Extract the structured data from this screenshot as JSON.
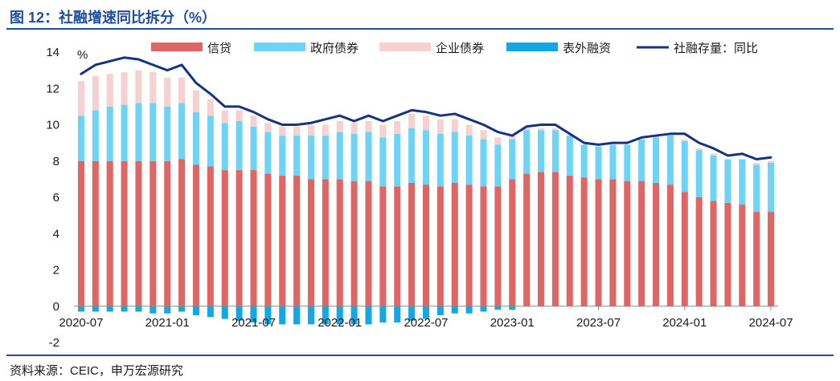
{
  "header": {
    "title": "图 12：社融增速同比拆分（%）"
  },
  "footer": {
    "source": "资料来源：CEIC，申万宏源研究"
  },
  "colors": {
    "credit": "#e06666",
    "gov_bonds": "#6dd4f7",
    "corp_bonds": "#f7d0d0",
    "off_balance": "#14a7e8",
    "tsf_line": "#16337f",
    "axis": "#8a8a8a",
    "title": "#1f4e9c"
  },
  "chart_data": {
    "type": "bar",
    "stacked": true,
    "ylabel": "%",
    "ylim": [
      -2,
      14
    ],
    "yticks": [
      -2,
      0,
      2,
      4,
      6,
      8,
      10,
      12,
      14
    ],
    "x_tick_labels": [
      "2020-07",
      "2021-01",
      "2021-07",
      "2022-01",
      "2022-07",
      "2023-01",
      "2023-07",
      "2024-01",
      "2024-07"
    ],
    "x_tick_every": 6,
    "legend_position": "top",
    "series": [
      {
        "name": "信贷",
        "kind": "bar",
        "color_key": "credit",
        "values": [
          8.0,
          8.0,
          8.0,
          8.0,
          8.0,
          8.0,
          8.0,
          8.1,
          7.8,
          7.7,
          7.5,
          7.5,
          7.5,
          7.3,
          7.2,
          7.2,
          7.0,
          7.0,
          7.0,
          6.9,
          6.9,
          6.6,
          6.6,
          6.8,
          6.7,
          6.6,
          6.8,
          6.7,
          6.6,
          6.6,
          7.0,
          7.3,
          7.4,
          7.4,
          7.2,
          7.1,
          7.0,
          7.0,
          6.9,
          6.9,
          6.8,
          6.7,
          6.3,
          6.0,
          5.8,
          5.7,
          5.6,
          5.2,
          5.2
        ]
      },
      {
        "name": "政府债券",
        "kind": "bar",
        "color_key": "gov_bonds",
        "values": [
          2.5,
          2.8,
          3.0,
          3.1,
          3.2,
          3.2,
          3.0,
          3.1,
          2.9,
          2.8,
          2.6,
          2.7,
          2.4,
          2.3,
          2.2,
          2.2,
          2.4,
          2.4,
          2.6,
          2.6,
          2.7,
          2.7,
          2.9,
          3.0,
          3.0,
          2.9,
          2.8,
          2.7,
          2.6,
          2.3,
          2.2,
          2.4,
          2.3,
          2.3,
          2.2,
          1.8,
          1.8,
          1.9,
          2.0,
          2.3,
          2.5,
          2.7,
          2.8,
          2.6,
          2.5,
          2.4,
          2.5,
          2.6,
          2.7
        ]
      },
      {
        "name": "企业债券",
        "kind": "bar",
        "color_key": "corp_bonds",
        "values": [
          1.9,
          1.9,
          1.8,
          1.8,
          1.8,
          1.7,
          1.6,
          1.4,
          1.2,
          0.9,
          0.7,
          0.6,
          0.6,
          0.5,
          0.5,
          0.5,
          0.6,
          0.6,
          0.6,
          0.6,
          0.6,
          0.7,
          0.7,
          0.8,
          0.8,
          0.8,
          0.7,
          0.6,
          0.5,
          0.4,
          0.3,
          0.1,
          0.1,
          0.1,
          0.0,
          0.0,
          0.0,
          0.0,
          0.0,
          0.0,
          0.1,
          0.1,
          0.1,
          0.1,
          0.1,
          0.0,
          0.0,
          0.1,
          0.1
        ]
      },
      {
        "name": "表外融资",
        "kind": "bar",
        "color_key": "off_balance",
        "values": [
          -0.3,
          -0.3,
          -0.3,
          -0.3,
          -0.3,
          -0.4,
          -0.4,
          -0.3,
          -0.5,
          -0.6,
          -0.7,
          -0.8,
          -0.9,
          -1.0,
          -1.0,
          -1.0,
          -1.0,
          -1.0,
          -1.0,
          -1.0,
          -1.0,
          -0.9,
          -0.9,
          -0.8,
          -0.7,
          -0.5,
          -0.4,
          -0.4,
          -0.3,
          -0.2,
          -0.2,
          0.0,
          0.0,
          0.0,
          0.0,
          0.0,
          0.0,
          0.0,
          0.0,
          0.0,
          0.0,
          0.0,
          0.0,
          0.0,
          0.0,
          0.0,
          0.0,
          0.0,
          0.0
        ]
      },
      {
        "name": "社融存量：同比",
        "kind": "line",
        "color_key": "tsf_line",
        "values": [
          12.8,
          13.3,
          13.5,
          13.7,
          13.6,
          13.3,
          13.0,
          13.3,
          12.3,
          11.7,
          11.0,
          11.0,
          10.7,
          10.3,
          10.0,
          10.0,
          10.1,
          10.3,
          10.5,
          10.2,
          10.5,
          10.2,
          10.5,
          10.8,
          10.7,
          10.5,
          10.6,
          10.3,
          10.0,
          9.6,
          9.4,
          9.9,
          10.0,
          10.0,
          9.5,
          9.0,
          8.9,
          9.0,
          9.0,
          9.3,
          9.4,
          9.5,
          9.5,
          9.0,
          8.7,
          8.3,
          8.4,
          8.1,
          8.2
        ]
      }
    ]
  }
}
